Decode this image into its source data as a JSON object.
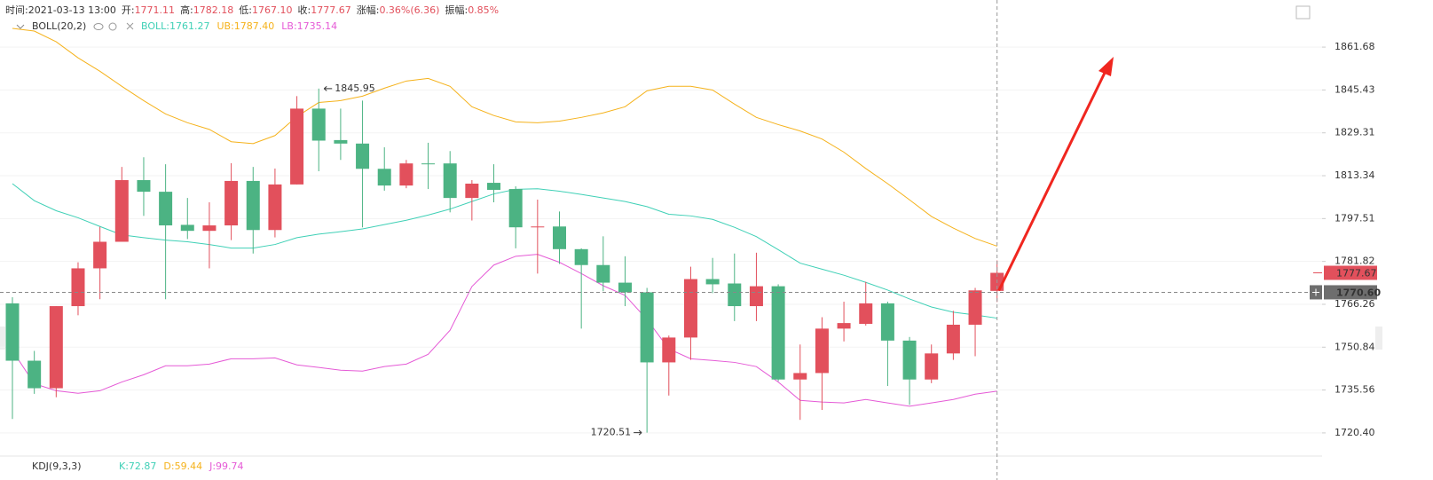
{
  "header": {
    "items": [
      {
        "label": "时间:",
        "value": "2021-03-13 13:00"
      },
      {
        "label": "开:",
        "value": "1771.11"
      },
      {
        "label": "高:",
        "value": "1782.18"
      },
      {
        "label": "低:",
        "value": "1767.10"
      },
      {
        "label": "收:",
        "value": "1777.67"
      },
      {
        "label": "涨幅:",
        "value": "0.36%(6.36)"
      },
      {
        "label": "振幅:",
        "value": "0.85%"
      }
    ]
  },
  "chart_data": {
    "type": "candlestick",
    "log_scale": true,
    "grid": true,
    "indicator": "BOLL(20,2)",
    "up_color": "#e2505c",
    "down_color": "#4cb383",
    "ylim": [
      1712.9,
      1879.7
    ],
    "yticks": [
      {
        "value": 1720.4,
        "label": "1720.40"
      },
      1735.56,
      1750.84,
      1766.26,
      1781.82,
      1797.51,
      1813.34,
      1829.31,
      1845.43,
      1861.68
    ],
    "open": [
      1766.6,
      1746.0,
      1736.2,
      1765.6,
      1779.3,
      1789.0,
      1811.7,
      1807.4,
      1795.2,
      1793.0,
      1795.0,
      1811.4,
      1793.3,
      1810.1,
      1838.4,
      1826.6,
      1825.3,
      1815.9,
      1809.7,
      1817.9,
      1817.9,
      1805.1,
      1810.7,
      1808.4,
      1794.3,
      1794.6,
      1786.3,
      1780.5,
      1774.1,
      1770.6,
      1745.4,
      1754.3,
      1775.4,
      1773.8,
      1765.6,
      1772.8,
      1739.3,
      1741.6,
      1757.5,
      1759.2,
      1766.6,
      1753.2,
      1739.3,
      1748.6,
      1758.9,
      1771.11
    ],
    "high": [
      1768.8,
      1749.5,
      1765.6,
      1781.5,
      1794.5,
      1816.6,
      1820.2,
      1817.6,
      1805.1,
      1803.5,
      1818.0,
      1816.6,
      1816.0,
      1843.1,
      1845.95,
      1838.4,
      1841.4,
      1823.9,
      1819.2,
      1825.6,
      1822.5,
      1811.7,
      1817.6,
      1809.4,
      1804.5,
      1800.1,
      1786.6,
      1791.0,
      1783.7,
      1772.2,
      1755.0,
      1779.9,
      1783.1,
      1784.7,
      1785.0,
      1773.5,
      1751.8,
      1761.6,
      1767.2,
      1774.4,
      1767.2,
      1754.5,
      1751.8,
      1763.9,
      1772.2,
      1782.18
    ],
    "low": [
      1725.3,
      1734.2,
      1733.0,
      1762.3,
      1768.1,
      1789.0,
      1798.5,
      1768.1,
      1790.0,
      1779.3,
      1789.6,
      1784.7,
      1790.6,
      1810.1,
      1815.0,
      1819.2,
      1794.3,
      1807.8,
      1808.7,
      1808.4,
      1799.8,
      1796.8,
      1803.5,
      1786.6,
      1777.4,
      1780.9,
      1757.5,
      1771.0,
      1765.6,
      1720.51,
      1733.6,
      1746.3,
      1770.3,
      1760.2,
      1760.2,
      1738.7,
      1725.0,
      1728.5,
      1752.9,
      1758.6,
      1737.0,
      1730.3,
      1738.0,
      1746.3,
      1747.6,
      1767.1
    ],
    "close": [
      1746.0,
      1736.2,
      1765.6,
      1779.3,
      1789.0,
      1811.7,
      1807.4,
      1795.0,
      1793.0,
      1795.0,
      1811.4,
      1793.3,
      1810.1,
      1838.4,
      1826.4,
      1825.3,
      1815.9,
      1809.7,
      1817.9,
      1817.6,
      1805.1,
      1810.4,
      1808.1,
      1794.3,
      1794.6,
      1786.3,
      1780.5,
      1774.1,
      1770.6,
      1745.4,
      1754.3,
      1775.4,
      1773.5,
      1765.6,
      1772.8,
      1739.3,
      1741.6,
      1757.5,
      1759.5,
      1766.6,
      1753.2,
      1739.3,
      1748.6,
      1758.9,
      1771.3,
      1777.67
    ],
    "bands": [
      {
        "label": "BOLL:1761.27",
        "color": "#3fd0b6",
        "values": [
          1810.4,
          1804.1,
          1800.4,
          1797.8,
          1794.6,
          1791.5,
          1790.5,
          1789.6,
          1789.0,
          1788.0,
          1786.7,
          1786.7,
          1788.0,
          1790.5,
          1791.8,
          1792.7,
          1793.7,
          1795.3,
          1796.9,
          1798.8,
          1801.0,
          1803.8,
          1806.6,
          1808.3,
          1808.5,
          1807.6,
          1806.4,
          1805.1,
          1803.8,
          1801.9,
          1799.1,
          1798.5,
          1797.2,
          1794.3,
          1790.9,
          1786.1,
          1781.2,
          1779.0,
          1776.8,
          1774.2,
          1771.4,
          1768.2,
          1765.3,
          1763.4,
          1762.4,
          1761.27
        ]
      },
      {
        "label": "UB:1787.40",
        "color": "#f5b21b",
        "values": [
          1868.8,
          1867.8,
          1863.7,
          1857.6,
          1852.5,
          1846.8,
          1841.4,
          1836.4,
          1833.1,
          1830.6,
          1826.0,
          1825.3,
          1828.3,
          1835.4,
          1840.7,
          1841.4,
          1843.1,
          1846.1,
          1848.8,
          1849.8,
          1846.8,
          1839.1,
          1835.8,
          1833.4,
          1833.1,
          1833.7,
          1835.1,
          1836.8,
          1839.1,
          1845.1,
          1846.8,
          1846.8,
          1845.4,
          1840.1,
          1835.1,
          1832.4,
          1830.0,
          1827.0,
          1822.1,
          1816.0,
          1810.4,
          1804.4,
          1798.3,
          1794.0,
          1790.2,
          1787.4
        ]
      },
      {
        "label": "LB:1735.14",
        "color": "#e55ad6",
        "values": [
          1749.6,
          1737.8,
          1735.3,
          1734.4,
          1735.3,
          1738.4,
          1741.0,
          1744.2,
          1744.2,
          1744.8,
          1746.7,
          1746.7,
          1747.0,
          1744.5,
          1743.6,
          1742.6,
          1742.3,
          1743.9,
          1744.8,
          1748.3,
          1756.9,
          1772.7,
          1780.5,
          1783.7,
          1784.4,
          1781.5,
          1777.4,
          1773.0,
          1769.5,
          1760.8,
          1750.2,
          1746.7,
          1746.1,
          1745.4,
          1743.9,
          1738.4,
          1731.9,
          1731.3,
          1731.0,
          1732.2,
          1731.0,
          1729.8,
          1731.0,
          1732.2,
          1734.1,
          1735.14
        ]
      }
    ],
    "crosshair": {
      "value": 1770.6,
      "label": "1770.60"
    }
  },
  "kdj": {
    "title": "KDJ(9,3,3)",
    "items": [
      {
        "label": "K:72.87",
        "color": "#3fd0b6"
      },
      {
        "label": "D:59.44",
        "color": "#f5b21b"
      },
      {
        "label": "J:99.74",
        "color": "#e55ad6"
      }
    ]
  }
}
